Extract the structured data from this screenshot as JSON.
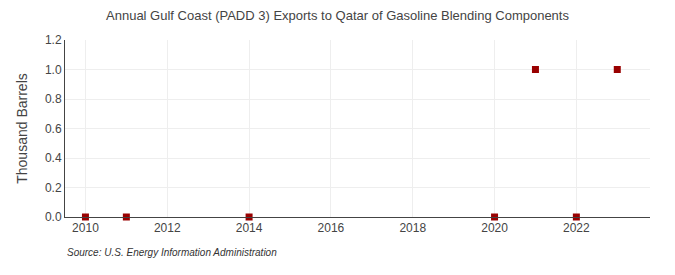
{
  "chart_data": {
    "type": "scatter",
    "title": "Annual Gulf Coast (PADD 3) Exports to Qatar of Gasoline Blending Components",
    "ylabel": "Thousand Barrels",
    "annotations": [
      {
        "text": "Source: U.S. Energy Information Administration"
      }
    ],
    "x": [
      2010,
      2011,
      2014,
      2020,
      2021,
      2022,
      2023
    ],
    "values": [
      0,
      0,
      0,
      0,
      1,
      0,
      1
    ],
    "color": "#990000",
    "marker": "square",
    "xlim": [
      2009.5,
      2023.8
    ],
    "ylim": [
      0,
      1.2
    ],
    "xticks": [
      2010,
      2012,
      2014,
      2016,
      2018,
      2020,
      2022
    ],
    "yticks": [
      {
        "value": 0,
        "label": "0.0"
      },
      0.2,
      0.4,
      0.6,
      0.8,
      {
        "value": 1,
        "label": "1.0"
      },
      1.2
    ],
    "grid": true
  }
}
